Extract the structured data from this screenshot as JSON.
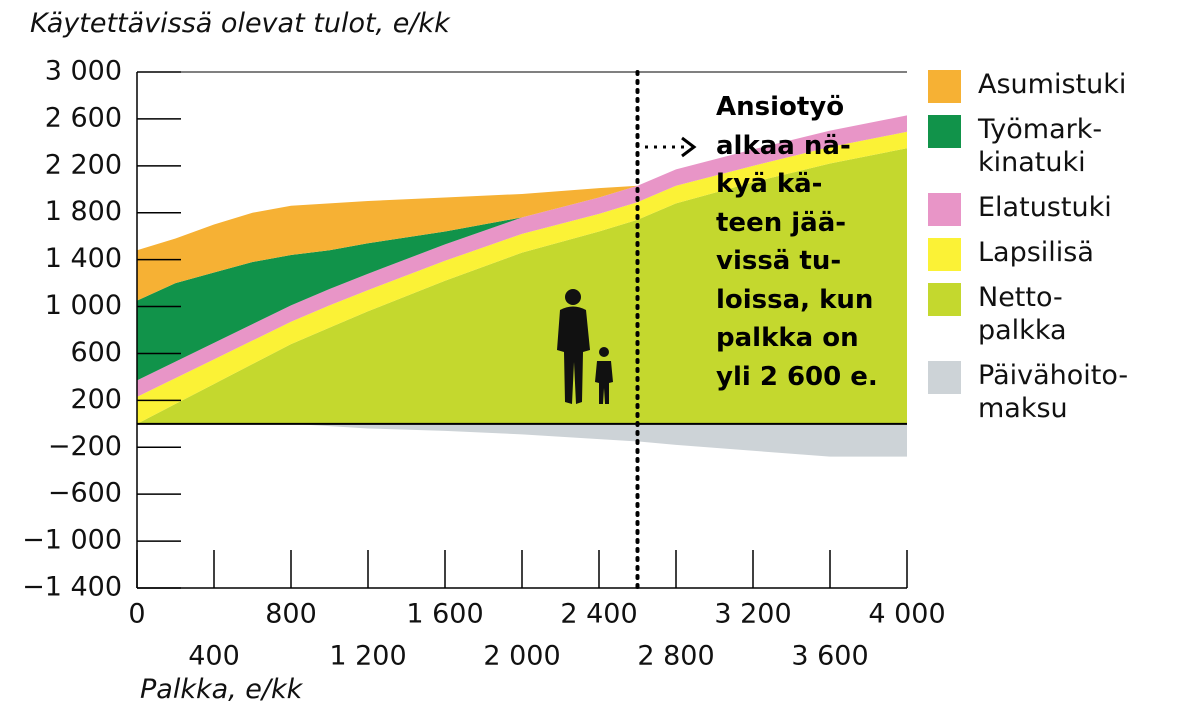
{
  "chart_data": {
    "type": "stacked_area",
    "title": "Käytettävissä olevat tulot, e/kk",
    "x_label": "Palkka, e/kk",
    "annotation": "Ansiotyö\nalkaa nä-\nkyä kä-\nteen jää-\nvissä tu-\nloissa, kun\npalkka on\nyli 2 600 e.",
    "marker_x": 2600,
    "x": [
      0,
      200,
      400,
      600,
      800,
      1000,
      1200,
      1600,
      2000,
      2400,
      2600,
      2800,
      3200,
      3600,
      4000
    ],
    "series": [
      {
        "name": "Netto-\npalkka",
        "color": "#c4d82e",
        "values": [
          0,
          170,
          340,
          510,
          680,
          820,
          960,
          1220,
          1460,
          1640,
          1740,
          1880,
          2060,
          2220,
          2350
        ]
      },
      {
        "name": "Lapsilisä",
        "color": "#fbf236",
        "values": [
          230,
          220,
          210,
          200,
          190,
          190,
          180,
          170,
          160,
          150,
          150,
          150,
          140,
          140,
          140
        ]
      },
      {
        "name": "Elatustuki",
        "color": "#e895c7",
        "values": [
          140,
          140,
          140,
          140,
          140,
          140,
          140,
          140,
          140,
          140,
          140,
          140,
          140,
          140,
          140
        ]
      },
      {
        "name": "Työmark-\nkinatuki",
        "color": "#11934a",
        "values": [
          680,
          670,
          600,
          530,
          430,
          330,
          260,
          110,
          0,
          0,
          0,
          0,
          0,
          0,
          0
        ]
      },
      {
        "name": "Asumistuki",
        "color": "#f6b134",
        "values": [
          430,
          380,
          410,
          420,
          420,
          400,
          360,
          290,
          200,
          80,
          0,
          0,
          0,
          0,
          0
        ]
      },
      {
        "name": "Päivähoito-\nmaksu",
        "color": "#cdd3d7",
        "values": [
          0,
          0,
          0,
          0,
          0,
          -20,
          -40,
          -60,
          -90,
          -130,
          -150,
          -180,
          -230,
          -280,
          -280
        ]
      }
    ],
    "xlim": [
      0,
      4000
    ],
    "xticks": [
      0,
      400,
      800,
      {
        "value": 1200,
        "label": "1 200"
      },
      {
        "value": 1600,
        "label": "1 600"
      },
      {
        "value": 2000,
        "label": "2 000"
      },
      {
        "value": 2400,
        "label": "2 400"
      },
      {
        "value": 2800,
        "label": "2 800"
      },
      {
        "value": 3200,
        "label": "3 200"
      },
      {
        "value": 3600,
        "label": "3 600"
      },
      {
        "value": 4000,
        "label": "4 000"
      }
    ],
    "ylim": [
      -1400,
      3000
    ],
    "yticks": [
      {
        "value": 3000,
        "label": "3 000"
      },
      {
        "value": 2600,
        "label": "2 600"
      },
      {
        "value": 2200,
        "label": "2 200"
      },
      {
        "value": 1800,
        "label": "1 800"
      },
      {
        "value": 1400,
        "label": "1 400"
      },
      {
        "value": 1000,
        "label": "1 000"
      },
      600,
      200,
      {
        "value": -200,
        "label": "−200"
      },
      {
        "value": -600,
        "label": "−600"
      },
      {
        "value": -1000,
        "label": "−1 000"
      },
      {
        "value": -1400,
        "label": "−1 400"
      }
    ]
  }
}
